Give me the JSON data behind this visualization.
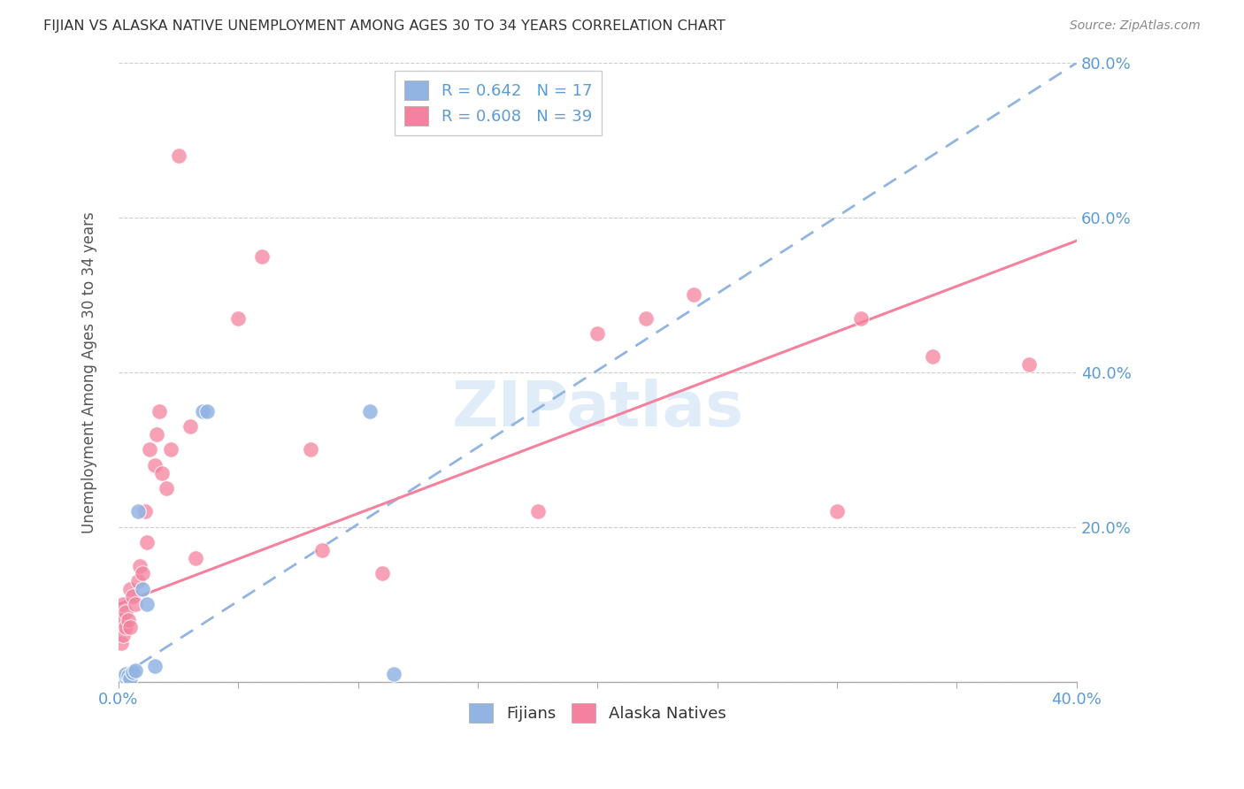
{
  "title": "FIJIAN VS ALASKA NATIVE UNEMPLOYMENT AMONG AGES 30 TO 34 YEARS CORRELATION CHART",
  "source": "Source: ZipAtlas.com",
  "ylabel": "Unemployment Among Ages 30 to 34 years",
  "xlim": [
    0.0,
    0.4
  ],
  "ylim": [
    0.0,
    0.8
  ],
  "fijian_color": "#92b4e3",
  "alaska_color": "#f4829e",
  "fijian_R": 0.642,
  "fijian_N": 17,
  "alaska_R": 0.608,
  "alaska_N": 39,
  "watermark_text": "ZIPatlas",
  "background_color": "#ffffff",
  "fijian_points_x": [
    0.001,
    0.002,
    0.002,
    0.003,
    0.003,
    0.004,
    0.005,
    0.006,
    0.007,
    0.008,
    0.01,
    0.012,
    0.015,
    0.035,
    0.037,
    0.105,
    0.115
  ],
  "fijian_points_y": [
    0.005,
    0.003,
    0.007,
    0.006,
    0.01,
    0.008,
    0.004,
    0.012,
    0.015,
    0.22,
    0.12,
    0.1,
    0.02,
    0.35,
    0.35,
    0.35,
    0.01
  ],
  "alaska_points_x": [
    0.001,
    0.001,
    0.002,
    0.002,
    0.003,
    0.003,
    0.004,
    0.005,
    0.005,
    0.006,
    0.007,
    0.008,
    0.009,
    0.01,
    0.011,
    0.012,
    0.013,
    0.015,
    0.016,
    0.017,
    0.018,
    0.02,
    0.022,
    0.025,
    0.03,
    0.032,
    0.05,
    0.06,
    0.08,
    0.085,
    0.11,
    0.175,
    0.2,
    0.22,
    0.24,
    0.3,
    0.31,
    0.34,
    0.38
  ],
  "alaska_points_y": [
    0.05,
    0.08,
    0.06,
    0.1,
    0.07,
    0.09,
    0.08,
    0.12,
    0.07,
    0.11,
    0.1,
    0.13,
    0.15,
    0.14,
    0.22,
    0.18,
    0.3,
    0.28,
    0.32,
    0.35,
    0.27,
    0.25,
    0.3,
    0.68,
    0.33,
    0.16,
    0.47,
    0.55,
    0.3,
    0.17,
    0.14,
    0.22,
    0.45,
    0.47,
    0.5,
    0.22,
    0.47,
    0.42,
    0.41
  ],
  "fijian_line_x0": 0.0,
  "fijian_line_y0": 0.005,
  "fijian_line_x1": 0.4,
  "fijian_line_y1": 0.8,
  "alaska_line_x0": 0.0,
  "alaska_line_y0": 0.1,
  "alaska_line_x1": 0.4,
  "alaska_line_y1": 0.57
}
